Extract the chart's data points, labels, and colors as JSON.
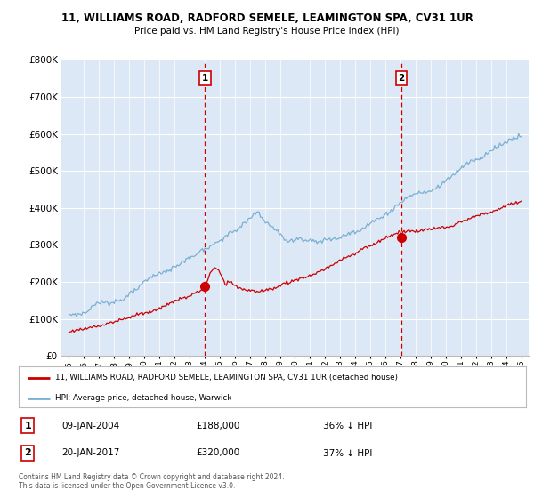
{
  "title1": "11, WILLIAMS ROAD, RADFORD SEMELE, LEAMINGTON SPA, CV31 1UR",
  "title2": "Price paid vs. HM Land Registry's House Price Index (HPI)",
  "ylim": [
    0,
    800000
  ],
  "xlim_start": 1994.5,
  "xlim_end": 2025.5,
  "xticks": [
    1995,
    1996,
    1997,
    1998,
    1999,
    2000,
    2001,
    2002,
    2003,
    2004,
    2005,
    2006,
    2007,
    2008,
    2009,
    2010,
    2011,
    2012,
    2013,
    2014,
    2015,
    2016,
    2017,
    2018,
    2019,
    2020,
    2021,
    2022,
    2023,
    2024,
    2025
  ],
  "sale1_x": 2004.03,
  "sale1_y": 188000,
  "sale1_label": "1",
  "sale2_x": 2017.05,
  "sale2_y": 320000,
  "sale2_label": "2",
  "hpi_color": "#7bafd4",
  "sale_color": "#cc0000",
  "vline_color": "#cc0000",
  "background_fill": "#dce8f5",
  "legend_line1": "11, WILLIAMS ROAD, RADFORD SEMELE, LEAMINGTON SPA, CV31 1UR (detached house)",
  "legend_line2": "HPI: Average price, detached house, Warwick",
  "annotation1_date": "09-JAN-2004",
  "annotation1_price": "£188,000",
  "annotation1_pct": "36% ↓ HPI",
  "annotation2_date": "20-JAN-2017",
  "annotation2_price": "£320,000",
  "annotation2_pct": "37% ↓ HPI",
  "footnote": "Contains HM Land Registry data © Crown copyright and database right 2024.\nThis data is licensed under the Open Government Licence v3.0."
}
